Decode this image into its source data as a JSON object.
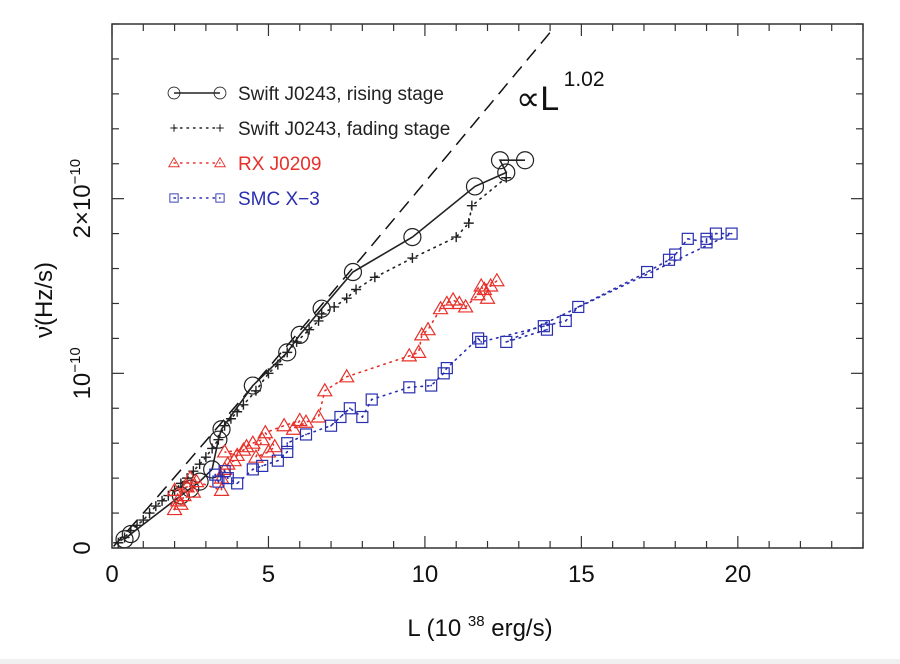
{
  "chart_data": {
    "type": "scatter",
    "title": "",
    "xlabel": "L (10^38 erg/s)",
    "xlabel_parts": {
      "prefix": "L (10",
      "sup": "38",
      "suffix": " erg/s)"
    },
    "ylabel": "ν̇(Hz/s)",
    "xlim": [
      0,
      24
    ],
    "ylim": [
      0,
      3.0
    ],
    "y_unit_multiplier": "1e-10",
    "x_ticks": [
      0,
      5,
      10,
      15,
      20
    ],
    "x_tick_labels": [
      "0",
      "5",
      "10",
      "15",
      "20"
    ],
    "x_minor_step": 1,
    "y_ticks": [
      0,
      1,
      2
    ],
    "y_tick_labels": [
      {
        "base": "0",
        "sup": ""
      },
      {
        "base": "10",
        "sup": "−10"
      },
      {
        "base": "2×10",
        "sup": "−10"
      }
    ],
    "y_minor_step": 0.2,
    "grid": false,
    "legend_position": "top-left",
    "annotation": {
      "text": "∝L",
      "sup": "1.02",
      "label": "∝L^1.02"
    },
    "reference_line": {
      "name": "power-law fit",
      "exponent": 1.02,
      "coef": 0.2,
      "style": "dashed",
      "color": "#111111"
    },
    "series": [
      {
        "name": "Swift J0243, rising stage",
        "color": "#222222",
        "marker": "circle",
        "line": "solid",
        "points": [
          [
            0.4,
            0.05
          ],
          [
            0.6,
            0.08
          ],
          [
            2.2,
            0.3
          ],
          [
            2.5,
            0.34
          ],
          [
            2.8,
            0.38
          ],
          [
            3.2,
            0.45
          ],
          [
            3.4,
            0.62
          ],
          [
            3.5,
            0.68
          ],
          [
            4.5,
            0.93
          ],
          [
            5.6,
            1.12
          ],
          [
            6.0,
            1.22
          ],
          [
            6.7,
            1.37
          ],
          [
            7.7,
            1.58
          ],
          [
            9.6,
            1.78
          ],
          [
            11.6,
            2.07
          ],
          [
            12.6,
            2.15
          ],
          [
            12.4,
            2.22
          ],
          [
            13.2,
            2.22
          ]
        ]
      },
      {
        "name": "Swift J0243, fading stage",
        "color": "#222222",
        "marker": "plus",
        "line": "dotted",
        "points": [
          [
            12.6,
            2.12
          ],
          [
            11.5,
            1.96
          ],
          [
            11.4,
            1.86
          ],
          [
            11.0,
            1.78
          ],
          [
            9.6,
            1.66
          ],
          [
            8.4,
            1.55
          ],
          [
            7.8,
            1.48
          ],
          [
            7.5,
            1.43
          ],
          [
            7.1,
            1.38
          ],
          [
            6.7,
            1.34
          ],
          [
            6.6,
            1.3
          ],
          [
            6.3,
            1.25
          ],
          [
            5.9,
            1.18
          ],
          [
            5.6,
            1.12
          ],
          [
            5.3,
            1.05
          ],
          [
            5.0,
            1.0
          ],
          [
            4.6,
            0.9
          ],
          [
            4.2,
            0.82
          ],
          [
            4.0,
            0.78
          ],
          [
            3.8,
            0.74
          ],
          [
            3.6,
            0.7
          ],
          [
            3.4,
            0.62
          ],
          [
            3.2,
            0.57
          ],
          [
            3.0,
            0.52
          ],
          [
            2.8,
            0.48
          ],
          [
            2.6,
            0.44
          ],
          [
            2.4,
            0.4
          ],
          [
            2.2,
            0.37
          ],
          [
            2.0,
            0.33
          ],
          [
            1.8,
            0.3
          ],
          [
            1.6,
            0.27
          ],
          [
            1.4,
            0.24
          ],
          [
            1.2,
            0.2
          ],
          [
            1.0,
            0.16
          ],
          [
            0.8,
            0.13
          ],
          [
            0.6,
            0.1
          ],
          [
            0.4,
            0.06
          ],
          [
            0.2,
            0.03
          ]
        ]
      },
      {
        "name": "RX J0209",
        "color": "#e8302a",
        "marker": "triangle",
        "line": "dotted",
        "points": [
          [
            2.0,
            0.22
          ],
          [
            2.1,
            0.27
          ],
          [
            2.2,
            0.25
          ],
          [
            2.3,
            0.3
          ],
          [
            2.0,
            0.33
          ],
          [
            2.4,
            0.35
          ],
          [
            2.6,
            0.32
          ],
          [
            2.5,
            0.4
          ],
          [
            2.7,
            0.38
          ],
          [
            3.5,
            0.33
          ],
          [
            3.5,
            0.4
          ],
          [
            3.6,
            0.45
          ],
          [
            3.7,
            0.48
          ],
          [
            3.9,
            0.5
          ],
          [
            4.0,
            0.53
          ],
          [
            3.6,
            0.55
          ],
          [
            4.2,
            0.56
          ],
          [
            4.3,
            0.58
          ],
          [
            4.5,
            0.6
          ],
          [
            4.8,
            0.62
          ],
          [
            4.6,
            0.52
          ],
          [
            5.0,
            0.55
          ],
          [
            5.2,
            0.58
          ],
          [
            4.9,
            0.66
          ],
          [
            5.5,
            0.7
          ],
          [
            6.0,
            0.73
          ],
          [
            5.8,
            0.68
          ],
          [
            6.2,
            0.72
          ],
          [
            6.6,
            0.75
          ],
          [
            6.8,
            0.9
          ],
          [
            7.5,
            0.98
          ],
          [
            9.5,
            1.1
          ],
          [
            9.8,
            1.12
          ],
          [
            9.9,
            1.22
          ],
          [
            10.1,
            1.25
          ],
          [
            10.5,
            1.37
          ],
          [
            10.7,
            1.4
          ],
          [
            10.9,
            1.42
          ],
          [
            11.1,
            1.4
          ],
          [
            11.3,
            1.38
          ],
          [
            11.7,
            1.45
          ],
          [
            11.9,
            1.48
          ],
          [
            12.1,
            1.5
          ],
          [
            12.3,
            1.53
          ],
          [
            11.8,
            1.5
          ],
          [
            12.0,
            1.43
          ]
        ]
      },
      {
        "name": "SMC X-3",
        "color": "#2a2fb0",
        "marker": "square",
        "line": "dotted",
        "points": [
          [
            3.3,
            0.42
          ],
          [
            3.4,
            0.38
          ],
          [
            3.6,
            0.44
          ],
          [
            3.7,
            0.4
          ],
          [
            4.0,
            0.37
          ],
          [
            4.5,
            0.45
          ],
          [
            4.8,
            0.47
          ],
          [
            5.3,
            0.5
          ],
          [
            5.6,
            0.55
          ],
          [
            5.6,
            0.6
          ],
          [
            6.2,
            0.65
          ],
          [
            7.0,
            0.7
          ],
          [
            7.3,
            0.75
          ],
          [
            7.6,
            0.8
          ],
          [
            8.0,
            0.75
          ],
          [
            8.3,
            0.85
          ],
          [
            9.5,
            0.92
          ],
          [
            10.2,
            0.93
          ],
          [
            10.6,
            1.0
          ],
          [
            10.7,
            1.03
          ],
          [
            11.7,
            1.2
          ],
          [
            11.8,
            1.18
          ],
          [
            13.8,
            1.27
          ],
          [
            14.5,
            1.3
          ],
          [
            14.9,
            1.38
          ],
          [
            17.1,
            1.58
          ],
          [
            17.8,
            1.65
          ],
          [
            18.0,
            1.68
          ],
          [
            18.4,
            1.77
          ],
          [
            19.0,
            1.75
          ],
          [
            19.0,
            1.77
          ],
          [
            19.3,
            1.8
          ],
          [
            19.8,
            1.8
          ],
          [
            12.6,
            1.18
          ],
          [
            13.9,
            1.25
          ]
        ]
      }
    ]
  }
}
